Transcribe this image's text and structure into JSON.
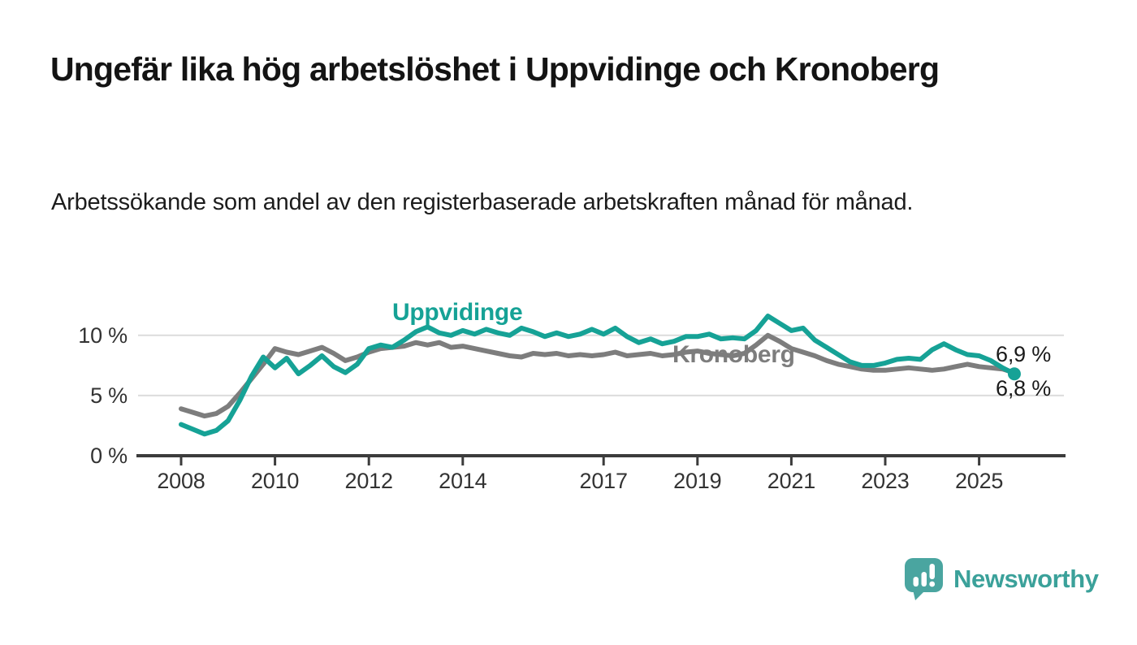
{
  "title": "Ungefär lika hög arbetslöshet i Uppvidinge och Kronoberg",
  "subtitle": "Arbetssökande som andel av den registerbaserade arbetskraften månad för månad.",
  "footer": {
    "brand": "Newsworthy"
  },
  "colors": {
    "uppvidinge_teal": "#16a296",
    "kronoberg_gray": "#7d7d7d",
    "gridline": "#dcdcdc",
    "axis": "#3c3c3c",
    "text": "#1a1a1a",
    "logo_teal": "#4aa5a0",
    "wordmark_teal": "#3ba19a"
  },
  "chart_data": {
    "type": "line",
    "title": "Ungefär lika hög arbetslöshet i Uppvidinge och Kronoberg",
    "unit": "%",
    "ylim": [
      0,
      12.5
    ],
    "xlim": [
      2007.1,
      2026.8
    ],
    "grid": "horizontal",
    "y_ticks": [
      {
        "value": 0,
        "label": "0 %"
      },
      {
        "value": 5,
        "label": "5 %"
      },
      {
        "value": 10,
        "label": "10 %"
      }
    ],
    "x_ticks": [
      {
        "value": 2008,
        "label": "2008"
      },
      {
        "value": 2010,
        "label": "2010"
      },
      {
        "value": 2012,
        "label": "2012"
      },
      {
        "value": 2014,
        "label": "2014"
      },
      {
        "value": 2017,
        "label": "2017"
      },
      {
        "value": 2019,
        "label": "2019"
      },
      {
        "value": 2021,
        "label": "2021"
      },
      {
        "value": 2023,
        "label": "2023"
      },
      {
        "value": 2025,
        "label": "2025"
      }
    ],
    "series": [
      {
        "name": "Uppvidinge",
        "color": "#16a296",
        "end_label": "6,8 %",
        "marker_end": true,
        "points": [
          [
            2008.0,
            2.6
          ],
          [
            2008.25,
            2.2
          ],
          [
            2008.5,
            1.8
          ],
          [
            2008.75,
            2.1
          ],
          [
            2009.0,
            2.9
          ],
          [
            2009.25,
            4.6
          ],
          [
            2009.5,
            6.6
          ],
          [
            2009.75,
            8.2
          ],
          [
            2010.0,
            7.3
          ],
          [
            2010.25,
            8.1
          ],
          [
            2010.5,
            6.8
          ],
          [
            2010.75,
            7.5
          ],
          [
            2011.0,
            8.3
          ],
          [
            2011.25,
            7.4
          ],
          [
            2011.5,
            6.9
          ],
          [
            2011.75,
            7.6
          ],
          [
            2012.0,
            8.9
          ],
          [
            2012.25,
            9.2
          ],
          [
            2012.5,
            9.0
          ],
          [
            2012.75,
            9.6
          ],
          [
            2013.0,
            10.3
          ],
          [
            2013.25,
            10.7
          ],
          [
            2013.5,
            10.2
          ],
          [
            2013.75,
            10.0
          ],
          [
            2014.0,
            10.4
          ],
          [
            2014.25,
            10.1
          ],
          [
            2014.5,
            10.5
          ],
          [
            2014.75,
            10.2
          ],
          [
            2015.0,
            10.0
          ],
          [
            2015.25,
            10.6
          ],
          [
            2015.5,
            10.3
          ],
          [
            2015.75,
            9.9
          ],
          [
            2016.0,
            10.2
          ],
          [
            2016.25,
            9.9
          ],
          [
            2016.5,
            10.1
          ],
          [
            2016.75,
            10.5
          ],
          [
            2017.0,
            10.1
          ],
          [
            2017.25,
            10.6
          ],
          [
            2017.5,
            9.9
          ],
          [
            2017.75,
            9.4
          ],
          [
            2018.0,
            9.7
          ],
          [
            2018.25,
            9.3
          ],
          [
            2018.5,
            9.5
          ],
          [
            2018.75,
            9.9
          ],
          [
            2019.0,
            9.9
          ],
          [
            2019.25,
            10.1
          ],
          [
            2019.5,
            9.7
          ],
          [
            2019.75,
            9.8
          ],
          [
            2020.0,
            9.7
          ],
          [
            2020.25,
            10.4
          ],
          [
            2020.5,
            11.6
          ],
          [
            2020.75,
            11.0
          ],
          [
            2021.0,
            10.4
          ],
          [
            2021.25,
            10.6
          ],
          [
            2021.5,
            9.6
          ],
          [
            2021.75,
            9.0
          ],
          [
            2022.0,
            8.4
          ],
          [
            2022.25,
            7.8
          ],
          [
            2022.5,
            7.5
          ],
          [
            2022.75,
            7.5
          ],
          [
            2023.0,
            7.7
          ],
          [
            2023.25,
            8.0
          ],
          [
            2023.5,
            8.1
          ],
          [
            2023.75,
            8.0
          ],
          [
            2024.0,
            8.8
          ],
          [
            2024.25,
            9.3
          ],
          [
            2024.5,
            8.8
          ],
          [
            2024.75,
            8.4
          ],
          [
            2025.0,
            8.3
          ],
          [
            2025.25,
            7.9
          ],
          [
            2025.5,
            7.3
          ],
          [
            2025.75,
            6.8
          ]
        ]
      },
      {
        "name": "Kronoberg",
        "color": "#7d7d7d",
        "end_label": "6,9 %",
        "marker_end": false,
        "points": [
          [
            2008.0,
            3.9
          ],
          [
            2008.25,
            3.6
          ],
          [
            2008.5,
            3.3
          ],
          [
            2008.75,
            3.5
          ],
          [
            2009.0,
            4.1
          ],
          [
            2009.25,
            5.2
          ],
          [
            2009.5,
            6.4
          ],
          [
            2009.75,
            7.6
          ],
          [
            2010.0,
            8.9
          ],
          [
            2010.25,
            8.6
          ],
          [
            2010.5,
            8.4
          ],
          [
            2010.75,
            8.7
          ],
          [
            2011.0,
            9.0
          ],
          [
            2011.25,
            8.5
          ],
          [
            2011.5,
            7.9
          ],
          [
            2011.75,
            8.2
          ],
          [
            2012.0,
            8.6
          ],
          [
            2012.25,
            8.9
          ],
          [
            2012.5,
            9.0
          ],
          [
            2012.75,
            9.1
          ],
          [
            2013.0,
            9.4
          ],
          [
            2013.25,
            9.2
          ],
          [
            2013.5,
            9.4
          ],
          [
            2013.75,
            9.0
          ],
          [
            2014.0,
            9.1
          ],
          [
            2014.25,
            8.9
          ],
          [
            2014.5,
            8.7
          ],
          [
            2014.75,
            8.5
          ],
          [
            2015.0,
            8.3
          ],
          [
            2015.25,
            8.2
          ],
          [
            2015.5,
            8.5
          ],
          [
            2015.75,
            8.4
          ],
          [
            2016.0,
            8.5
          ],
          [
            2016.25,
            8.3
          ],
          [
            2016.5,
            8.4
          ],
          [
            2016.75,
            8.3
          ],
          [
            2017.0,
            8.4
          ],
          [
            2017.25,
            8.6
          ],
          [
            2017.5,
            8.3
          ],
          [
            2017.75,
            8.4
          ],
          [
            2018.0,
            8.5
          ],
          [
            2018.25,
            8.3
          ],
          [
            2018.5,
            8.4
          ],
          [
            2018.75,
            8.6
          ],
          [
            2019.0,
            8.7
          ],
          [
            2019.25,
            8.5
          ],
          [
            2019.5,
            8.4
          ],
          [
            2019.75,
            8.3
          ],
          [
            2020.0,
            8.5
          ],
          [
            2020.25,
            9.2
          ],
          [
            2020.5,
            10.0
          ],
          [
            2020.75,
            9.5
          ],
          [
            2021.0,
            8.9
          ],
          [
            2021.25,
            8.6
          ],
          [
            2021.5,
            8.3
          ],
          [
            2021.75,
            7.9
          ],
          [
            2022.0,
            7.6
          ],
          [
            2022.25,
            7.4
          ],
          [
            2022.5,
            7.2
          ],
          [
            2022.75,
            7.1
          ],
          [
            2023.0,
            7.1
          ],
          [
            2023.25,
            7.2
          ],
          [
            2023.5,
            7.3
          ],
          [
            2023.75,
            7.2
          ],
          [
            2024.0,
            7.1
          ],
          [
            2024.25,
            7.2
          ],
          [
            2024.5,
            7.4
          ],
          [
            2024.75,
            7.6
          ],
          [
            2025.0,
            7.4
          ],
          [
            2025.25,
            7.3
          ],
          [
            2025.5,
            7.2
          ],
          [
            2025.75,
            6.9
          ]
        ]
      }
    ]
  }
}
